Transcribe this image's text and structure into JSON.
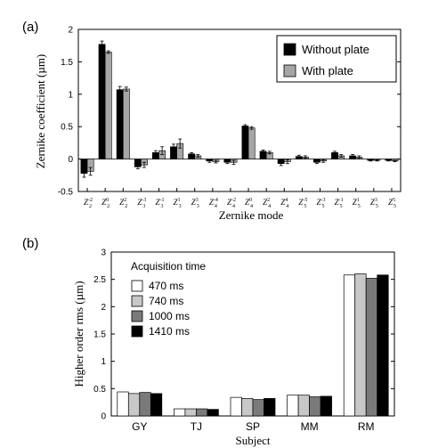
{
  "chart_data": [
    {
      "panel": "(a)",
      "type": "bar",
      "ylabel": "Zernike coefficient (µm)",
      "xlabel": "Zernike mode",
      "ylim": [
        -0.5,
        2
      ],
      "yticks": [
        "-0.5",
        "0",
        "0.5",
        "1",
        "1.5",
        "2"
      ],
      "categories": [
        {
          "base": "Z",
          "sup": "-2",
          "sub": "2"
        },
        {
          "base": "Z",
          "sup": "0",
          "sub": "2"
        },
        {
          "base": "Z",
          "sup": "2",
          "sub": "2"
        },
        {
          "base": "Z",
          "sup": "-3",
          "sub": "3"
        },
        {
          "base": "Z",
          "sup": "-1",
          "sub": "3"
        },
        {
          "base": "Z",
          "sup": "1",
          "sub": "3"
        },
        {
          "base": "Z",
          "sup": "3",
          "sub": "3"
        },
        {
          "base": "Z",
          "sup": "-4",
          "sub": "4"
        },
        {
          "base": "Z",
          "sup": "-2",
          "sub": "4"
        },
        {
          "base": "Z",
          "sup": "0",
          "sub": "4"
        },
        {
          "base": "Z",
          "sup": "2",
          "sub": "4"
        },
        {
          "base": "Z",
          "sup": "4",
          "sub": "4"
        },
        {
          "base": "Z",
          "sup": "-5",
          "sub": "5"
        },
        {
          "base": "Z",
          "sup": "-3",
          "sub": "5"
        },
        {
          "base": "Z",
          "sup": "-1",
          "sub": "5"
        },
        {
          "base": "Z",
          "sup": "1",
          "sub": "5"
        },
        {
          "base": "Z",
          "sup": "3",
          "sub": "5"
        },
        {
          "base": "Z",
          "sup": "5",
          "sub": "5"
        }
      ],
      "series": [
        {
          "name": "Without plate",
          "color": "#000000",
          "values": [
            -0.22,
            1.77,
            1.07,
            -0.12,
            0.1,
            0.19,
            0.08,
            -0.03,
            -0.05,
            0.51,
            0.12,
            -0.07,
            0.04,
            -0.05,
            0.1,
            0.05,
            -0.02,
            -0.02
          ],
          "errors": [
            0.06,
            0.05,
            0.05,
            0.03,
            0.03,
            0.04,
            0.02,
            0.02,
            0.02,
            0.02,
            0.02,
            0.03,
            0.02,
            0.02,
            0.02,
            0.02,
            0.01,
            0.01
          ]
        },
        {
          "name": "With plate",
          "color": "#a6a6a6",
          "values": [
            -0.19,
            1.65,
            1.08,
            -0.09,
            0.13,
            0.24,
            0.05,
            -0.04,
            -0.05,
            0.48,
            0.1,
            -0.04,
            0.03,
            -0.03,
            0.05,
            0.03,
            -0.02,
            -0.03
          ],
          "errors": [
            0.06,
            0.02,
            0.03,
            0.04,
            0.06,
            0.07,
            0.02,
            0.02,
            0.03,
            0.02,
            0.02,
            0.03,
            0.02,
            0.02,
            0.02,
            0.02,
            0.01,
            0.01
          ]
        }
      ],
      "legend": {
        "position": "top-right"
      },
      "grid": false
    },
    {
      "panel": "(b)",
      "type": "bar",
      "ylabel": "Higher order rms (µm)",
      "xlabel": "Subject",
      "ylim": [
        0,
        3
      ],
      "yticks": [
        "0",
        "0.5",
        "1",
        "1.5",
        "2",
        "2.5",
        "3"
      ],
      "categories": [
        "GY",
        "TJ",
        "SP",
        "MM",
        "RM"
      ],
      "legend_title": "Acquisition time",
      "series": [
        {
          "name": "470 ms",
          "color": "#ffffff",
          "values": [
            0.44,
            0.13,
            0.34,
            0.38,
            2.58
          ]
        },
        {
          "name": "740 ms",
          "color": "#c8c8c8",
          "values": [
            0.41,
            0.13,
            0.32,
            0.38,
            2.6
          ]
        },
        {
          "name": "1000 ms",
          "color": "#7a7a7a",
          "values": [
            0.43,
            0.13,
            0.3,
            0.35,
            2.52
          ]
        },
        {
          "name": "1410 ms",
          "color": "#000000",
          "values": [
            0.41,
            0.12,
            0.32,
            0.36,
            2.58
          ]
        }
      ],
      "legend": {
        "position": "top-left"
      },
      "grid": false
    }
  ]
}
